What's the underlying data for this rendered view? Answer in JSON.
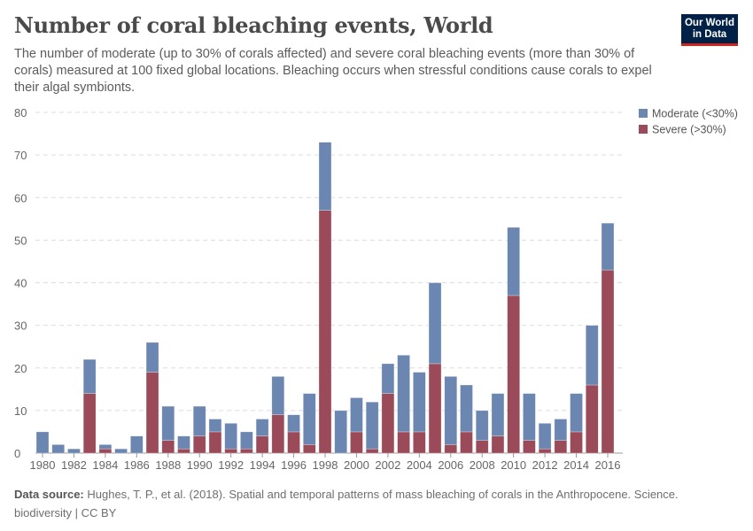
{
  "title": "Number of coral bleaching events, World",
  "subtitle": "The number of moderate (up to 30% of corals affected) and severe coral bleaching events (more than 30% of corals) measured at 100 fixed global locations. Bleaching occurs when stressful conditions cause corals to expel their algal symbionts.",
  "logo": "Our World in Data",
  "footer": {
    "label": "Data source:",
    "text": "Hughes, T. P., et al. (2018). Spatial and temporal patterns of mass bleaching of corals in the Anthropocene. Science.",
    "line2": "biodiversity | CC BY"
  },
  "chart_data": {
    "type": "bar",
    "stacked": true,
    "ylim": [
      0,
      80
    ],
    "yticks": [
      0,
      10,
      20,
      30,
      40,
      50,
      60,
      70,
      80
    ],
    "grid": true,
    "legend": "top-right",
    "xticks": [
      "1980",
      "1982",
      "1984",
      "1986",
      "1988",
      "1990",
      "1992",
      "1994",
      "1996",
      "1998",
      "2000",
      "2002",
      "2004",
      "2006",
      "2008",
      "2010",
      "2012",
      "2014",
      "2016"
    ],
    "categories": [
      1980,
      1981,
      1982,
      1983,
      1984,
      1985,
      1986,
      1987,
      1988,
      1989,
      1990,
      1991,
      1992,
      1993,
      1994,
      1995,
      1996,
      1997,
      1998,
      1999,
      2000,
      2001,
      2002,
      2003,
      2004,
      2005,
      2006,
      2007,
      2008,
      2009,
      2010,
      2011,
      2012,
      2013,
      2014,
      2015,
      2016
    ],
    "series": [
      {
        "name": "Severe (>30%)",
        "color": "#9a4a59",
        "values": [
          0,
          0,
          0,
          14,
          1,
          0,
          0,
          19,
          3,
          1,
          4,
          5,
          1,
          1,
          4,
          9,
          5,
          2,
          57,
          0,
          5,
          1,
          14,
          5,
          5,
          21,
          2,
          5,
          3,
          4,
          37,
          3,
          1,
          3,
          5,
          16,
          43
        ]
      },
      {
        "name": "Moderate (<30%)",
        "color": "#6a86b1",
        "values": [
          5,
          2,
          1,
          8,
          1,
          1,
          4,
          7,
          8,
          3,
          7,
          3,
          6,
          4,
          4,
          9,
          4,
          12,
          16,
          10,
          8,
          11,
          7,
          18,
          14,
          19,
          16,
          11,
          7,
          10,
          16,
          11,
          6,
          5,
          9,
          14,
          11
        ]
      }
    ],
    "legend_order": [
      "Moderate (<30%)",
      "Severe (>30%)"
    ]
  }
}
